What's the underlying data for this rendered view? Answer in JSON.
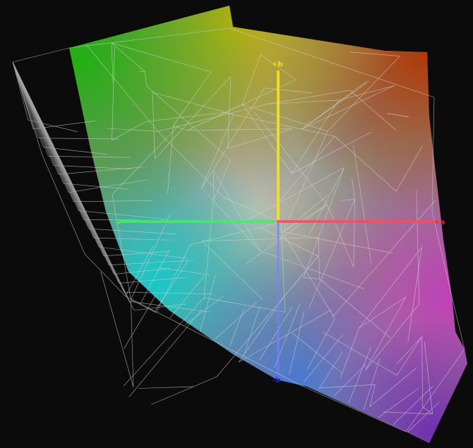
{
  "view": "gamut-3d-lab",
  "axes": {
    "plus_b": {
      "label": "+b",
      "color": "#f2e21a"
    },
    "minus_b": {
      "label": "-b",
      "color": "#1a1aff"
    },
    "minus_a": {
      "label": "-a",
      "color": "#22ff22"
    },
    "plus_a": {
      "label": "+a",
      "color": "#ff2020"
    }
  },
  "colors": {
    "background": "#0b0b0b",
    "wireframe": "#d8d8d8",
    "green": "#22b514",
    "yellow": "#b9b510",
    "orange": "#b4420c",
    "magenta": "#c040b0",
    "purple": "#7a2fb0",
    "blue": "#5070c8",
    "cyan": "#1ec8c8"
  }
}
